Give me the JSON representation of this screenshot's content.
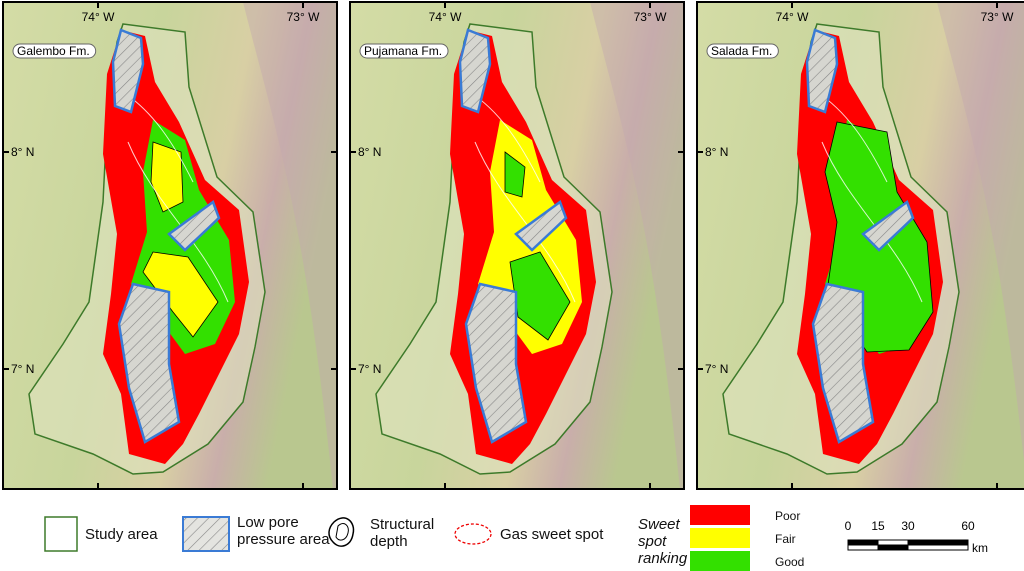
{
  "panels": [
    {
      "label": "Galembo Fm."
    },
    {
      "label": "Pujamana Fm."
    },
    {
      "label": "Salada Fm."
    }
  ],
  "axes": {
    "x_labels": [
      "74° W",
      "73° W"
    ],
    "y_labels": [
      "8° N",
      "7° N"
    ]
  },
  "legend": {
    "items": [
      "Study area",
      "Low pore pressure area",
      "Structural depth",
      "Gas sweet spot"
    ],
    "ranking_title": "Sweet spot ranking",
    "ranking": [
      {
        "label": "Poor",
        "color": "#ff0000"
      },
      {
        "label": "Fair",
        "color": "#ffff00"
      },
      {
        "label": "Good",
        "color": "#33e000"
      }
    ]
  },
  "scale": {
    "ticks": [
      0,
      15,
      30,
      60
    ],
    "unit": "km"
  }
}
